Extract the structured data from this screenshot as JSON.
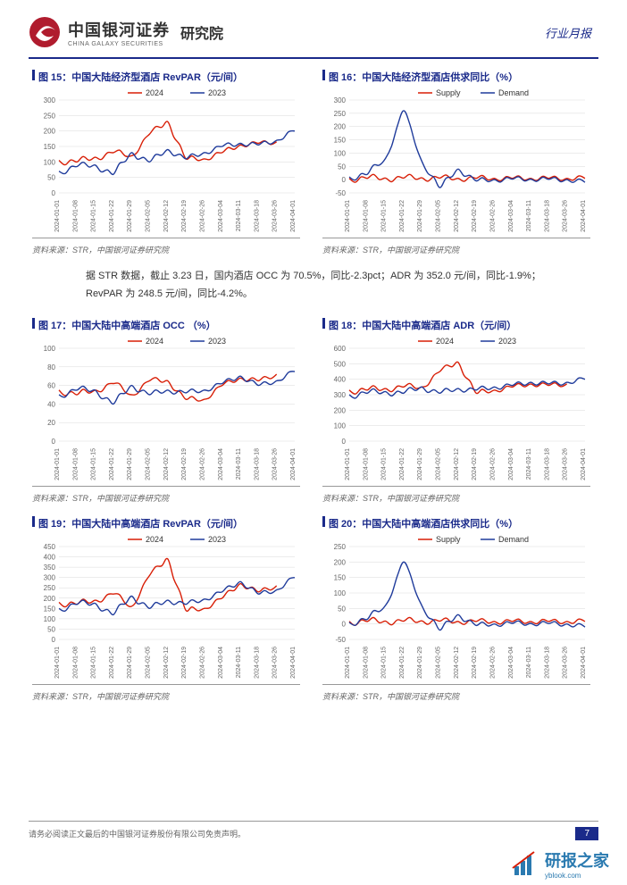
{
  "header": {
    "brand_zh": "中国银河证券",
    "brand_en": "CHINA GALAXY SECURITIES",
    "brand_sub": "研究院",
    "report_type": "行业月报"
  },
  "body_text": "据 STR 数据，截止 3.23 日，国内酒店 OCC 为 70.5%，同比-2.3pct；ADR 为 352.0 元/间，同比-1.9%；RevPAR 为 248.5 元/间，同比-4.2%。",
  "footer": {
    "disclaimer": "请务必阅读正文最后的中国银河证券股份有限公司免责声明。",
    "page": "7"
  },
  "watermark": {
    "zh": "研报之家",
    "en": "yblook.com"
  },
  "common": {
    "categories": [
      "2024-01-01",
      "2024-01-08",
      "2024-01-15",
      "2024-01-22",
      "2024-01-29",
      "2024-02-05",
      "2024-02-12",
      "2024-02-19",
      "2024-02-26",
      "2024-03-04",
      "2024-03-11",
      "2024-03-18",
      "2024-03-26",
      "2024-04-01"
    ],
    "source": "资料来源：STR，中国银河证券研究院",
    "title_color": "#1a2a8a",
    "grid_color": "#d9d9d9",
    "axis_color": "#666666",
    "background_color": "#ffffff",
    "series_colors": {
      "red": "#d81e06",
      "blue": "#1f3b9b"
    },
    "legend_fontsize": 9,
    "label_fontsize": 8
  },
  "charts": [
    {
      "id": "fig15",
      "title": "图  15：中国大陆经济型酒店 RevPAR（元/间）",
      "legend": [
        "2024",
        "2023"
      ],
      "ylim": [
        0,
        300
      ],
      "ytick_step": 50,
      "type": "line",
      "line_width": 1.4,
      "series": [
        {
          "label": "2024",
          "color": "#d81e06",
          "values": [
            105,
            100,
            115,
            130,
            120,
            190,
            230,
            110,
            110,
            130,
            155,
            160,
            165,
            null
          ]
        },
        {
          "label": "2023",
          "color": "#1f3b9b",
          "values": [
            70,
            85,
            90,
            60,
            130,
            100,
            140,
            110,
            130,
            150,
            160,
            155,
            170,
            200
          ]
        }
      ]
    },
    {
      "id": "fig16",
      "title": "图  16：中国大陆经济型酒店供求同比（%）",
      "legend": [
        "Supply",
        "Demand"
      ],
      "ylim": [
        -50,
        300
      ],
      "ytick_step": 50,
      "type": "line",
      "line_width": 1.4,
      "series": [
        {
          "label": "Supply",
          "color": "#d81e06",
          "values": [
            5,
            5,
            6,
            6,
            7,
            6,
            5,
            5,
            5,
            5,
            5,
            5,
            5,
            5
          ]
        },
        {
          "label": "Demand",
          "color": "#1f3b9b",
          "values": [
            10,
            20,
            80,
            260,
            70,
            -30,
            40,
            -5,
            0,
            2,
            2,
            1,
            0,
            -10
          ]
        }
      ]
    },
    {
      "id": "fig17",
      "title": "图  17：中国大陆中高端酒店 OCC （%）",
      "legend": [
        "2024",
        "2023"
      ],
      "ylim": [
        0,
        100
      ],
      "ytick_step": 20,
      "type": "line",
      "line_width": 1.4,
      "series": [
        {
          "label": "2024",
          "color": "#d81e06",
          "values": [
            55,
            50,
            55,
            62,
            50,
            65,
            65,
            45,
            45,
            60,
            68,
            65,
            72,
            null
          ]
        },
        {
          "label": "2023",
          "color": "#1f3b9b",
          "values": [
            50,
            55,
            55,
            40,
            60,
            50,
            55,
            52,
            55,
            62,
            70,
            60,
            65,
            75
          ]
        }
      ]
    },
    {
      "id": "fig18",
      "title": "图  18：中国大陆中高端酒店 ADR（元/间）",
      "legend": [
        "2024",
        "2023"
      ],
      "ylim": [
        0,
        600
      ],
      "ytick_step": 100,
      "type": "line",
      "line_width": 1.4,
      "series": [
        {
          "label": "2024",
          "color": "#d81e06",
          "values": [
            330,
            330,
            340,
            350,
            350,
            450,
            510,
            310,
            330,
            350,
            370,
            360,
            370,
            null
          ]
        },
        {
          "label": "2023",
          "color": "#1f3b9b",
          "values": [
            300,
            310,
            320,
            310,
            350,
            310,
            340,
            330,
            350,
            360,
            380,
            370,
            380,
            400
          ]
        }
      ]
    },
    {
      "id": "fig19",
      "title": "图  19：中国大陆中高端酒店 RevPAR（元/间）",
      "legend": [
        "2024",
        "2023"
      ],
      "ylim": [
        0,
        450
      ],
      "ytick_step": 50,
      "type": "line",
      "line_width": 1.4,
      "series": [
        {
          "label": "2024",
          "color": "#d81e06",
          "values": [
            180,
            170,
            190,
            220,
            160,
            310,
            390,
            140,
            150,
            200,
            270,
            230,
            260,
            null
          ]
        },
        {
          "label": "2023",
          "color": "#1f3b9b",
          "values": [
            150,
            170,
            175,
            120,
            210,
            150,
            190,
            170,
            195,
            230,
            280,
            220,
            240,
            300
          ]
        }
      ]
    },
    {
      "id": "fig20",
      "title": "图  20：中国大陆中高端酒店供求同比（%）",
      "legend": [
        "Supply",
        "Demand"
      ],
      "ylim": [
        -50,
        250
      ],
      "ytick_step": 50,
      "type": "line",
      "line_width": 1.4,
      "series": [
        {
          "label": "Supply",
          "color": "#d81e06",
          "values": [
            8,
            8,
            9,
            9,
            10,
            9,
            8,
            8,
            8,
            8,
            8,
            8,
            8,
            8
          ]
        },
        {
          "label": "Demand",
          "color": "#1f3b9b",
          "values": [
            5,
            15,
            60,
            200,
            60,
            -20,
            30,
            -5,
            0,
            2,
            2,
            1,
            0,
            -10
          ]
        }
      ]
    }
  ]
}
